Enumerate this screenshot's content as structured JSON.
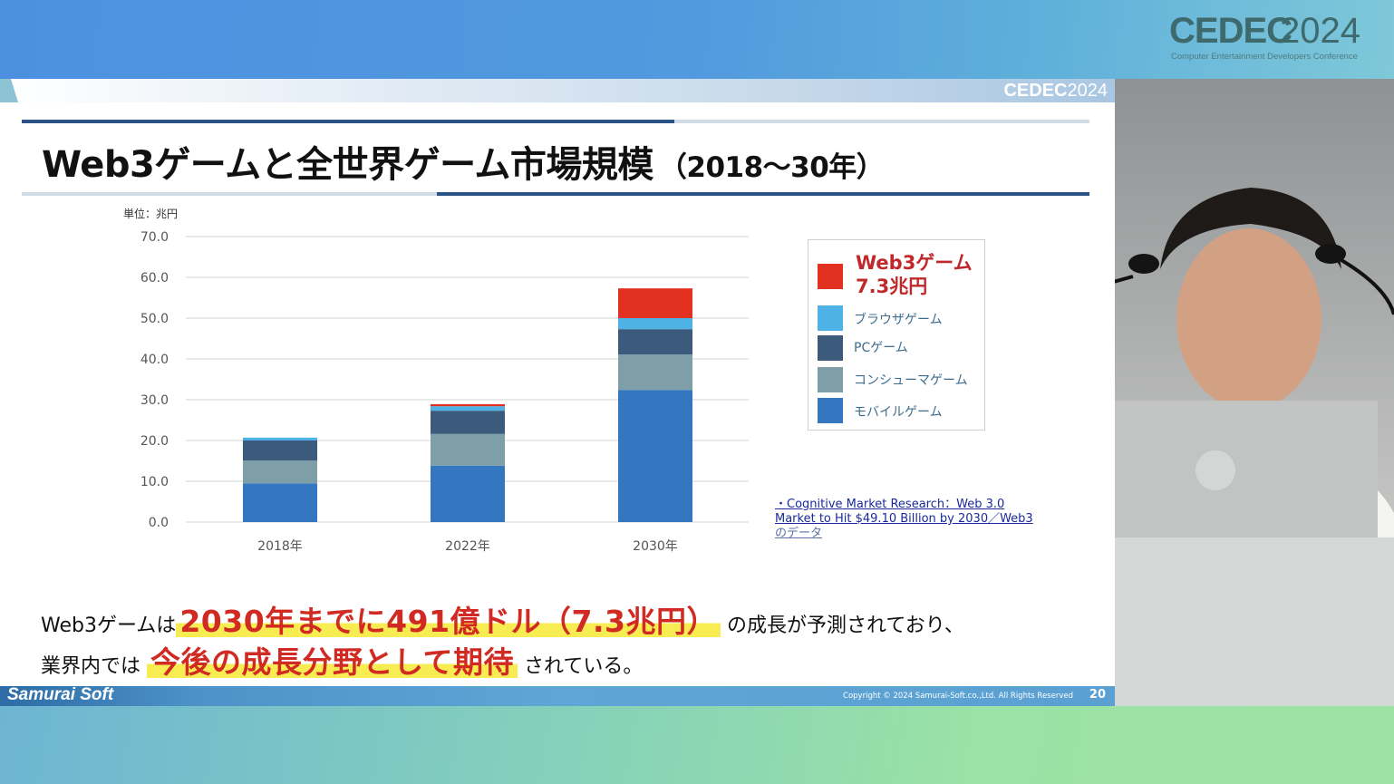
{
  "event_logo": {
    "name": "CEDEC",
    "year": "2024",
    "tagline": "Computer Entertainment Developers Conference"
  },
  "slide": {
    "header_logo": {
      "name": "CEDEC",
      "year": "2024"
    },
    "title": "Web3ゲームと全世界ゲーム市場規模",
    "title_paren": "（2018～30年）",
    "unit_label": "単位：兆円",
    "legend": {
      "web3_label": "Web3ゲーム",
      "web3_value": "7.3兆円",
      "items": [
        "ブラウザゲーム",
        "PCゲーム",
        "コンシューマゲーム",
        "モバイルゲーム"
      ]
    },
    "source": {
      "line1": "・Cognitive Market Research：Web 3.0",
      "line2": "Market to Hit $49.10 Billion by 2030／Web3",
      "line3": "のデータ"
    },
    "body": {
      "line1_prefix": "Web3ゲームは",
      "line1_highlight": "2030年までに491億ドル（7.3兆円）",
      "line1_suffix": "の成長が予測されており、",
      "line2_prefix": "業界内では",
      "line2_highlight": "今後の成長分野として期待",
      "line2_suffix": "されている。"
    },
    "footer": {
      "brand": "Samurai Soft",
      "copyright": "Copyright © 2024 Samurai-Soft.co.,Ltd. All Rights Reserved",
      "page_number": "20"
    }
  },
  "chart_data": {
    "type": "bar",
    "stacked": true,
    "title": "Web3ゲームと全世界ゲーム市場規模（2018～30年）",
    "xlabel": "",
    "ylabel": "単位：兆円",
    "ylim": [
      0,
      70
    ],
    "yticks": [
      "0.0",
      "10.0",
      "20.0",
      "30.0",
      "40.0",
      "50.0",
      "60.0",
      "70.0"
    ],
    "grid": true,
    "legend_position": "right",
    "categories": [
      "2018年",
      "2022年",
      "2030年"
    ],
    "series": [
      {
        "name": "モバイルゲーム",
        "color": "#3477c0",
        "values": [
          9.5,
          13.8,
          32.4
        ]
      },
      {
        "name": "コンシューマゲーム",
        "color": "#7f9fa8",
        "values": [
          5.6,
          7.8,
          8.7
        ]
      },
      {
        "name": "PCゲーム",
        "color": "#3c5a7c",
        "values": [
          4.9,
          5.7,
          6.2
        ]
      },
      {
        "name": "ブラウザゲーム",
        "color": "#4eb2e6",
        "values": [
          0.7,
          1.1,
          2.7
        ]
      },
      {
        "name": "Web3ゲーム",
        "color": "#e23121",
        "values": [
          0,
          0.5,
          7.3
        ]
      }
    ]
  }
}
